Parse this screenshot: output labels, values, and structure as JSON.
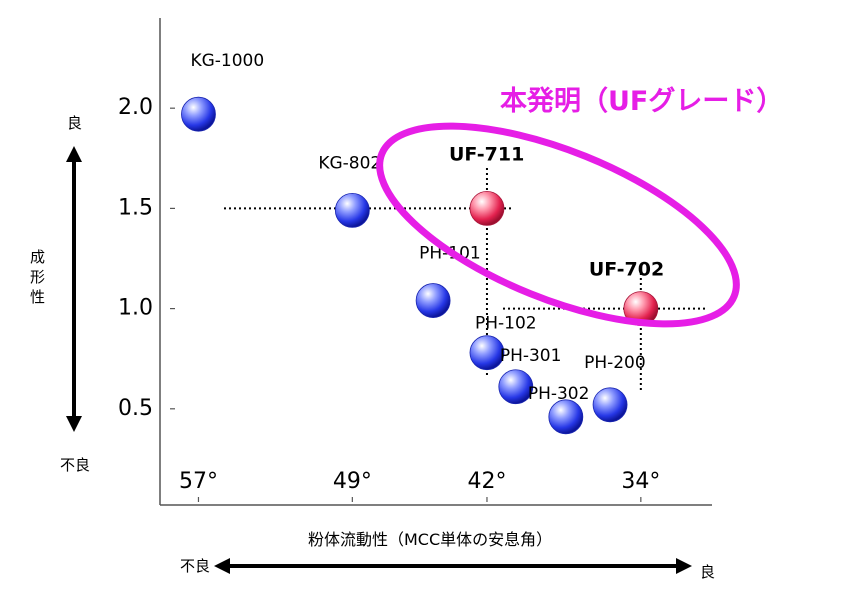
{
  "chart_data": {
    "type": "scatter",
    "title": "",
    "xlabel": "粉体流動性（MCC単体の安息角）",
    "ylabel": "成形性",
    "xlim": [
      59.0,
      30.3
    ],
    "ylim": [
      0.02,
      2.45
    ],
    "x_ticks": [
      {
        "value": 57,
        "label": "57°"
      },
      {
        "value": 49,
        "label": "49°"
      },
      {
        "value": 42,
        "label": "42°"
      },
      {
        "value": 34,
        "label": "34°"
      }
    ],
    "y_ticks": [
      {
        "value": 2.0,
        "label": "2.0"
      },
      {
        "value": 1.5,
        "label": "1.5"
      },
      {
        "value": 1.0,
        "label": "1.0"
      },
      {
        "value": 0.5,
        "label": "0.5"
      }
    ],
    "y_axis_good": "良",
    "y_axis_bad": "不良",
    "x_axis_bad": "不良",
    "x_axis_good": "良",
    "highlight_label": "本発明（UFグレード）",
    "colors": {
      "normal": "#2030e0",
      "highlight": "#e0204a",
      "accent": "#e61ee6"
    },
    "points": [
      {
        "label": "KG-1000",
        "x": 57.0,
        "y": 1.97,
        "highlight": false
      },
      {
        "label": "KG-802",
        "x": 49.0,
        "y": 1.49,
        "highlight": false
      },
      {
        "label": "PH-101",
        "x": 44.8,
        "y": 1.04,
        "highlight": false
      },
      {
        "label": "PH-102",
        "x": 42.0,
        "y": 0.78,
        "highlight": false
      },
      {
        "label": "PH-301",
        "x": 40.5,
        "y": 0.61,
        "highlight": false
      },
      {
        "label": "PH-302",
        "x": 37.9,
        "y": 0.46,
        "highlight": false
      },
      {
        "label": "PH-200",
        "x": 35.6,
        "y": 0.52,
        "highlight": false
      },
      {
        "label": "UF-711",
        "x": 42.0,
        "y": 1.5,
        "highlight": true
      },
      {
        "label": "UF-702",
        "x": 34.0,
        "y": 1.0,
        "highlight": true
      }
    ]
  }
}
